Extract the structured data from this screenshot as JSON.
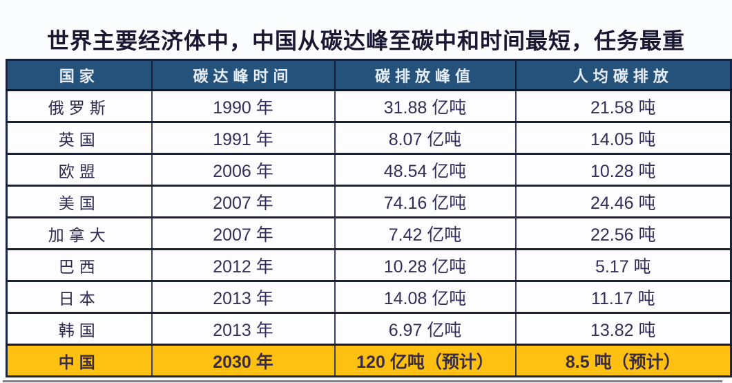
{
  "title": "世界主要经济体中，中国从碳达峰至碳中和时间最短，任务最重",
  "chart_data": {
    "type": "table",
    "title": "世界主要经济体中，中国从碳达峰至碳中和时间最短，任务最重",
    "columns": [
      "国家",
      "碳达峰时间",
      "碳排放峰值",
      "人均碳排放"
    ],
    "rows": [
      {
        "country": "俄罗斯",
        "peak_year": "1990 年",
        "peak_emission": "31.88 亿吨",
        "per_capita": "21.58 吨",
        "highlight": false
      },
      {
        "country": "英国",
        "peak_year": "1991 年",
        "peak_emission": "8.07 亿吨",
        "per_capita": "14.05 吨",
        "highlight": false
      },
      {
        "country": "欧盟",
        "peak_year": "2006 年",
        "peak_emission": "48.54 亿吨",
        "per_capita": "10.28 吨",
        "highlight": false
      },
      {
        "country": "美国",
        "peak_year": "2007 年",
        "peak_emission": "74.16 亿吨",
        "per_capita": "24.46 吨",
        "highlight": false
      },
      {
        "country": "加拿大",
        "peak_year": "2007 年",
        "peak_emission": "7.42 亿吨",
        "per_capita": "22.56 吨",
        "highlight": false
      },
      {
        "country": "巴西",
        "peak_year": "2012 年",
        "peak_emission": "10.28 亿吨",
        "per_capita": "5.17 吨",
        "highlight": false
      },
      {
        "country": "日本",
        "peak_year": "2013 年",
        "peak_emission": "14.08 亿吨",
        "per_capita": "11.17 吨",
        "highlight": false
      },
      {
        "country": "韩国",
        "peak_year": "2013 年",
        "peak_emission": "6.97 亿吨",
        "per_capita": "13.82 吨",
        "highlight": false
      },
      {
        "country": "中国",
        "peak_year": "2030 年",
        "peak_emission": "120 亿吨（预计）",
        "per_capita": "8.5 吨（预计）",
        "highlight": true
      }
    ]
  },
  "colors": {
    "header_bg": "#24527B",
    "highlight_row_bg": "#FEC011",
    "grid_line": "#1B2136",
    "outer_border": "#1A2340",
    "header_text": "#E7EDF5",
    "body_text": "#322E5C",
    "title_text": "#191731",
    "page_bg": "#FBFCFE"
  }
}
